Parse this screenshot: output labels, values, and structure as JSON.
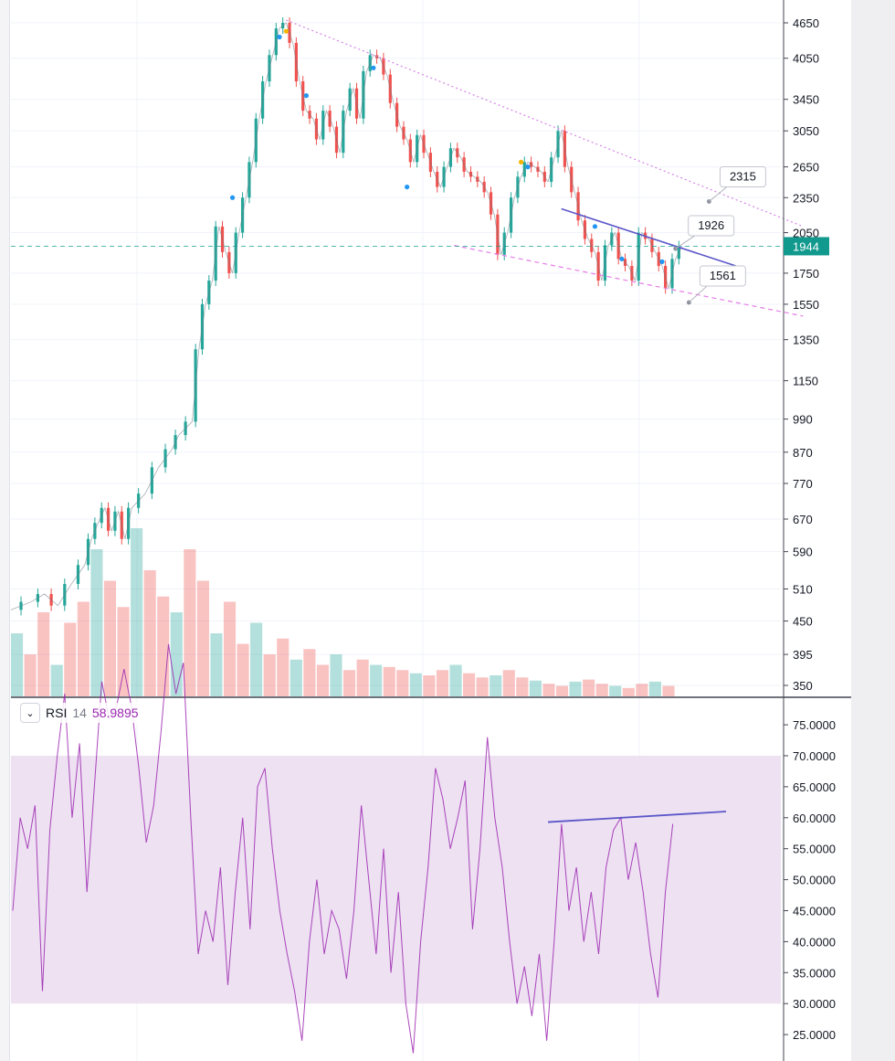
{
  "chart_data": [
    {
      "type": "candlestick",
      "scale": "log",
      "price_ticks": [
        4650,
        4050,
        3450,
        3050,
        2650,
        2350,
        2050,
        1750,
        1550,
        1350,
        1150,
        990,
        870,
        770,
        670,
        590,
        510,
        450,
        395,
        350
      ],
      "last_price": 1944,
      "last_price_label": "1944",
      "price_path": [
        [
          0,
          470
        ],
        [
          3,
          485
        ],
        [
          5,
          500
        ],
        [
          7,
          478
        ],
        [
          9,
          520
        ],
        [
          11,
          560
        ],
        [
          12,
          620
        ],
        [
          13,
          660
        ],
        [
          14,
          700
        ],
        [
          15,
          640
        ],
        [
          16,
          690
        ],
        [
          17,
          620
        ],
        [
          18,
          700
        ],
        [
          20,
          740
        ],
        [
          22,
          820
        ],
        [
          24,
          880
        ],
        [
          25,
          930
        ],
        [
          27,
          980
        ],
        [
          28,
          1300
        ],
        [
          29,
          1550
        ],
        [
          30,
          1700
        ],
        [
          31,
          2100
        ],
        [
          32,
          1900
        ],
        [
          33,
          1750
        ],
        [
          34,
          2050
        ],
        [
          35,
          2350
        ],
        [
          36,
          2700
        ],
        [
          37,
          3200
        ],
        [
          38,
          3700
        ],
        [
          39,
          4100
        ],
        [
          40,
          4550
        ],
        [
          41,
          4650
        ],
        [
          42,
          4300
        ],
        [
          43,
          3700
        ],
        [
          44,
          3300
        ],
        [
          45,
          3200
        ],
        [
          46,
          2950
        ],
        [
          47,
          3300
        ],
        [
          48,
          3100
        ],
        [
          49,
          2800
        ],
        [
          50,
          3300
        ],
        [
          51,
          3600
        ],
        [
          52,
          3200
        ],
        [
          53,
          3850
        ],
        [
          54,
          4100
        ],
        [
          55,
          4050
        ],
        [
          56,
          3800
        ],
        [
          57,
          3400
        ],
        [
          58,
          3100
        ],
        [
          59,
          2950
        ],
        [
          60,
          2700
        ],
        [
          61,
          3000
        ],
        [
          62,
          2800
        ],
        [
          63,
          2600
        ],
        [
          64,
          2450
        ],
        [
          65,
          2650
        ],
        [
          66,
          2850
        ],
        [
          67,
          2750
        ],
        [
          68,
          2600
        ],
        [
          69,
          2550
        ],
        [
          70,
          2500
        ],
        [
          71,
          2400
        ],
        [
          72,
          2200
        ],
        [
          73,
          1880
        ],
        [
          74,
          2050
        ],
        [
          75,
          2350
        ],
        [
          76,
          2550
        ],
        [
          77,
          2700
        ],
        [
          78,
          2650
        ],
        [
          79,
          2600
        ],
        [
          80,
          2500
        ],
        [
          81,
          2750
        ],
        [
          82,
          3050
        ],
        [
          83,
          2650
        ],
        [
          84,
          2400
        ],
        [
          85,
          2150
        ],
        [
          86,
          2000
        ],
        [
          87,
          1900
        ],
        [
          88,
          1700
        ],
        [
          89,
          1950
        ],
        [
          90,
          2050
        ],
        [
          91,
          1850
        ],
        [
          92,
          1800
        ],
        [
          93,
          1700
        ],
        [
          94,
          2050
        ],
        [
          95,
          2000
        ],
        [
          96,
          1900
        ],
        [
          97,
          1800
        ],
        [
          98,
          1650
        ],
        [
          99,
          1850
        ],
        [
          100,
          1944
        ]
      ],
      "markers": [
        {
          "x": 40,
          "y": 4400,
          "color": "#2196f3"
        },
        {
          "x": 41,
          "y": 4500,
          "color": "#f7b500"
        },
        {
          "x": 44,
          "y": 3500,
          "color": "#2196f3"
        },
        {
          "x": 54,
          "y": 3900,
          "color": "#2196f3"
        },
        {
          "x": 59,
          "y": 2450,
          "color": "#2196f3"
        },
        {
          "x": 33,
          "y": 2350,
          "color": "#2196f3"
        },
        {
          "x": 76,
          "y": 2700,
          "color": "#f7b500"
        },
        {
          "x": 77,
          "y": 2650,
          "color": "#2196f3"
        },
        {
          "x": 87,
          "y": 2100,
          "color": "#2196f3"
        },
        {
          "x": 91,
          "y": 1850,
          "color": "#2196f3"
        },
        {
          "x": 97,
          "y": 1830,
          "color": "#2196f3"
        }
      ],
      "volume": [
        60,
        40,
        80,
        30,
        70,
        90,
        140,
        110,
        85,
        160,
        120,
        95,
        80,
        140,
        110,
        60,
        90,
        50,
        70,
        40,
        55,
        35,
        45,
        30,
        40,
        25,
        35,
        30,
        28,
        25,
        22,
        20,
        25,
        30,
        22,
        18,
        20,
        25,
        18,
        15,
        12,
        10,
        14,
        16,
        12,
        10,
        8,
        12,
        14,
        10
      ],
      "trendlines": [
        {
          "name": "upper",
          "points": [
            [
              41,
              4700
            ],
            [
              118,
              2100
            ]
          ],
          "color": "#d682e8",
          "style": "dotted"
        },
        {
          "name": "lower",
          "points": [
            [
              66,
              1950
            ],
            [
              118,
              1480
            ]
          ],
          "color": "#e57ce8",
          "style": "dashed"
        },
        {
          "name": "short",
          "points": [
            [
              82,
              2250
            ],
            [
              108,
              1800
            ]
          ],
          "color": "#5b57c9",
          "style": "solid"
        }
      ],
      "callouts": [
        {
          "label": "2315",
          "anchor": [
            104,
            2315
          ]
        },
        {
          "label": "1926",
          "anchor": [
            99,
            1926
          ]
        },
        {
          "label": "1561",
          "anchor": [
            101,
            1561
          ]
        }
      ]
    },
    {
      "type": "line",
      "title": "RSI",
      "length": "14",
      "current": "58.9895",
      "y_ticks": [
        "75.0000",
        "70.0000",
        "65.0000",
        "60.0000",
        "55.0000",
        "50.0000",
        "45.0000",
        "40.0000",
        "35.0000",
        "30.0000",
        "25.0000"
      ],
      "band": [
        30,
        70
      ],
      "series": [
        [
          0,
          45
        ],
        [
          1,
          60
        ],
        [
          2,
          55
        ],
        [
          3,
          62
        ],
        [
          4,
          32
        ],
        [
          5,
          58
        ],
        [
          6,
          70
        ],
        [
          7,
          80
        ],
        [
          8,
          60
        ],
        [
          9,
          72
        ],
        [
          10,
          48
        ],
        [
          11,
          65
        ],
        [
          12,
          82
        ],
        [
          13,
          76
        ],
        [
          14,
          78
        ],
        [
          15,
          84
        ],
        [
          16,
          78
        ],
        [
          17,
          68
        ],
        [
          18,
          56
        ],
        [
          19,
          62
        ],
        [
          20,
          74
        ],
        [
          21,
          88
        ],
        [
          22,
          80
        ],
        [
          23,
          85
        ],
        [
          24,
          60
        ],
        [
          25,
          38
        ],
        [
          26,
          45
        ],
        [
          27,
          40
        ],
        [
          28,
          52
        ],
        [
          29,
          33
        ],
        [
          30,
          48
        ],
        [
          31,
          60
        ],
        [
          32,
          42
        ],
        [
          33,
          65
        ],
        [
          34,
          68
        ],
        [
          35,
          55
        ],
        [
          36,
          45
        ],
        [
          37,
          38
        ],
        [
          38,
          32
        ],
        [
          39,
          24
        ],
        [
          40,
          40
        ],
        [
          41,
          50
        ],
        [
          42,
          38
        ],
        [
          43,
          45
        ],
        [
          44,
          42
        ],
        [
          45,
          34
        ],
        [
          46,
          45
        ],
        [
          47,
          62
        ],
        [
          48,
          50
        ],
        [
          49,
          38
        ],
        [
          50,
          55
        ],
        [
          51,
          35
        ],
        [
          52,
          48
        ],
        [
          53,
          30
        ],
        [
          54,
          22
        ],
        [
          55,
          40
        ],
        [
          56,
          52
        ],
        [
          57,
          68
        ],
        [
          58,
          63
        ],
        [
          59,
          55
        ],
        [
          60,
          60
        ],
        [
          61,
          66
        ],
        [
          62,
          42
        ],
        [
          63,
          55
        ],
        [
          64,
          73
        ],
        [
          65,
          60
        ],
        [
          66,
          52
        ],
        [
          67,
          40
        ],
        [
          68,
          30
        ],
        [
          69,
          36
        ],
        [
          70,
          28
        ],
        [
          71,
          38
        ],
        [
          72,
          24
        ],
        [
          73,
          40
        ],
        [
          74,
          59
        ],
        [
          75,
          45
        ],
        [
          76,
          52
        ],
        [
          77,
          40
        ],
        [
          78,
          48
        ],
        [
          79,
          38
        ],
        [
          80,
          52
        ],
        [
          81,
          58
        ],
        [
          82,
          60
        ],
        [
          83,
          50
        ],
        [
          84,
          56
        ],
        [
          85,
          48
        ],
        [
          86,
          38
        ],
        [
          87,
          31
        ],
        [
          88,
          48
        ],
        [
          89,
          59
        ]
      ],
      "divergence_line": {
        "points": [
          [
            70,
            59.3
          ],
          [
            94,
            61
          ]
        ],
        "color": "#5b57c9"
      }
    }
  ],
  "rsi_header": {
    "name": "RSI",
    "length": "14",
    "value": "58.9895"
  },
  "colors": {
    "up": "#26a69a",
    "down": "#ef5350",
    "rsi": "#9c27b0",
    "band": "#ede1f2",
    "last_price_bg": "#11998e"
  },
  "icons": {
    "toggle": "chevron-down-icon"
  }
}
